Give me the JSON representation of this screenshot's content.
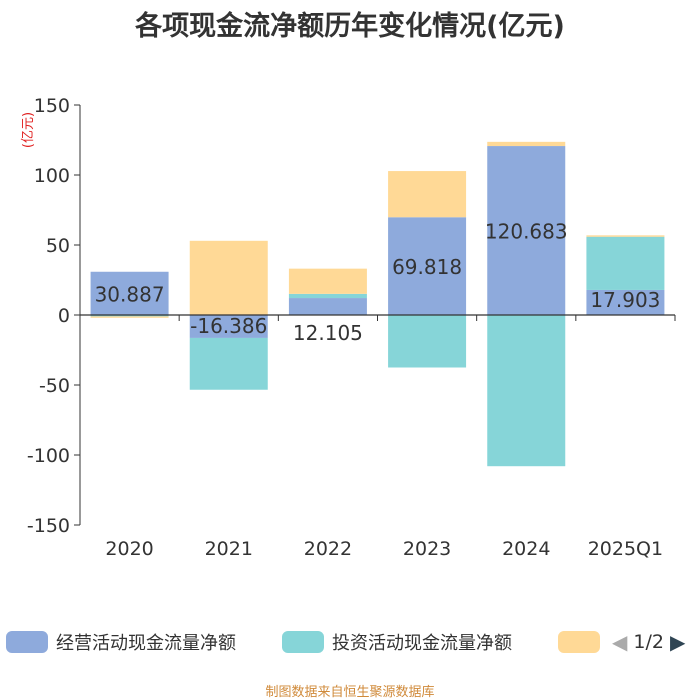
{
  "chart_data": {
    "type": "bar",
    "stacked": true,
    "title": "各项现金流净额历年变化情况(亿元)",
    "ylabel": "(亿元)",
    "ylim": [
      -150,
      150
    ],
    "yticks": [
      150,
      100,
      50,
      0,
      -50,
      -100,
      -150
    ],
    "categories": [
      "2020",
      "2021",
      "2022",
      "2023",
      "2024",
      "2025Q1"
    ],
    "series": [
      {
        "name": "经营活动现金流量净额",
        "color": "#8eaadc",
        "values": [
          30.887,
          -16.386,
          12.105,
          69.818,
          120.683,
          17.903
        ],
        "labels": [
          "30.887",
          "-16.386",
          "12.105",
          "69.818",
          "120.683",
          "17.903"
        ]
      },
      {
        "name": "投资活动现金流量净额",
        "color": "#86d5d8",
        "values": [
          -1.0,
          -37.0,
          3.0,
          -37.5,
          -108.0,
          38.0
        ]
      },
      {
        "name": "",
        "color": "#ffd996",
        "values": [
          -1.0,
          53.0,
          18.0,
          33.0,
          3.0,
          1.0
        ]
      }
    ],
    "legend_position": "bottom"
  },
  "legend": {
    "pager": "1/2",
    "prev_icon": "◀",
    "next_icon": "▶"
  },
  "source": "制图数据来自恒生聚源数据库"
}
